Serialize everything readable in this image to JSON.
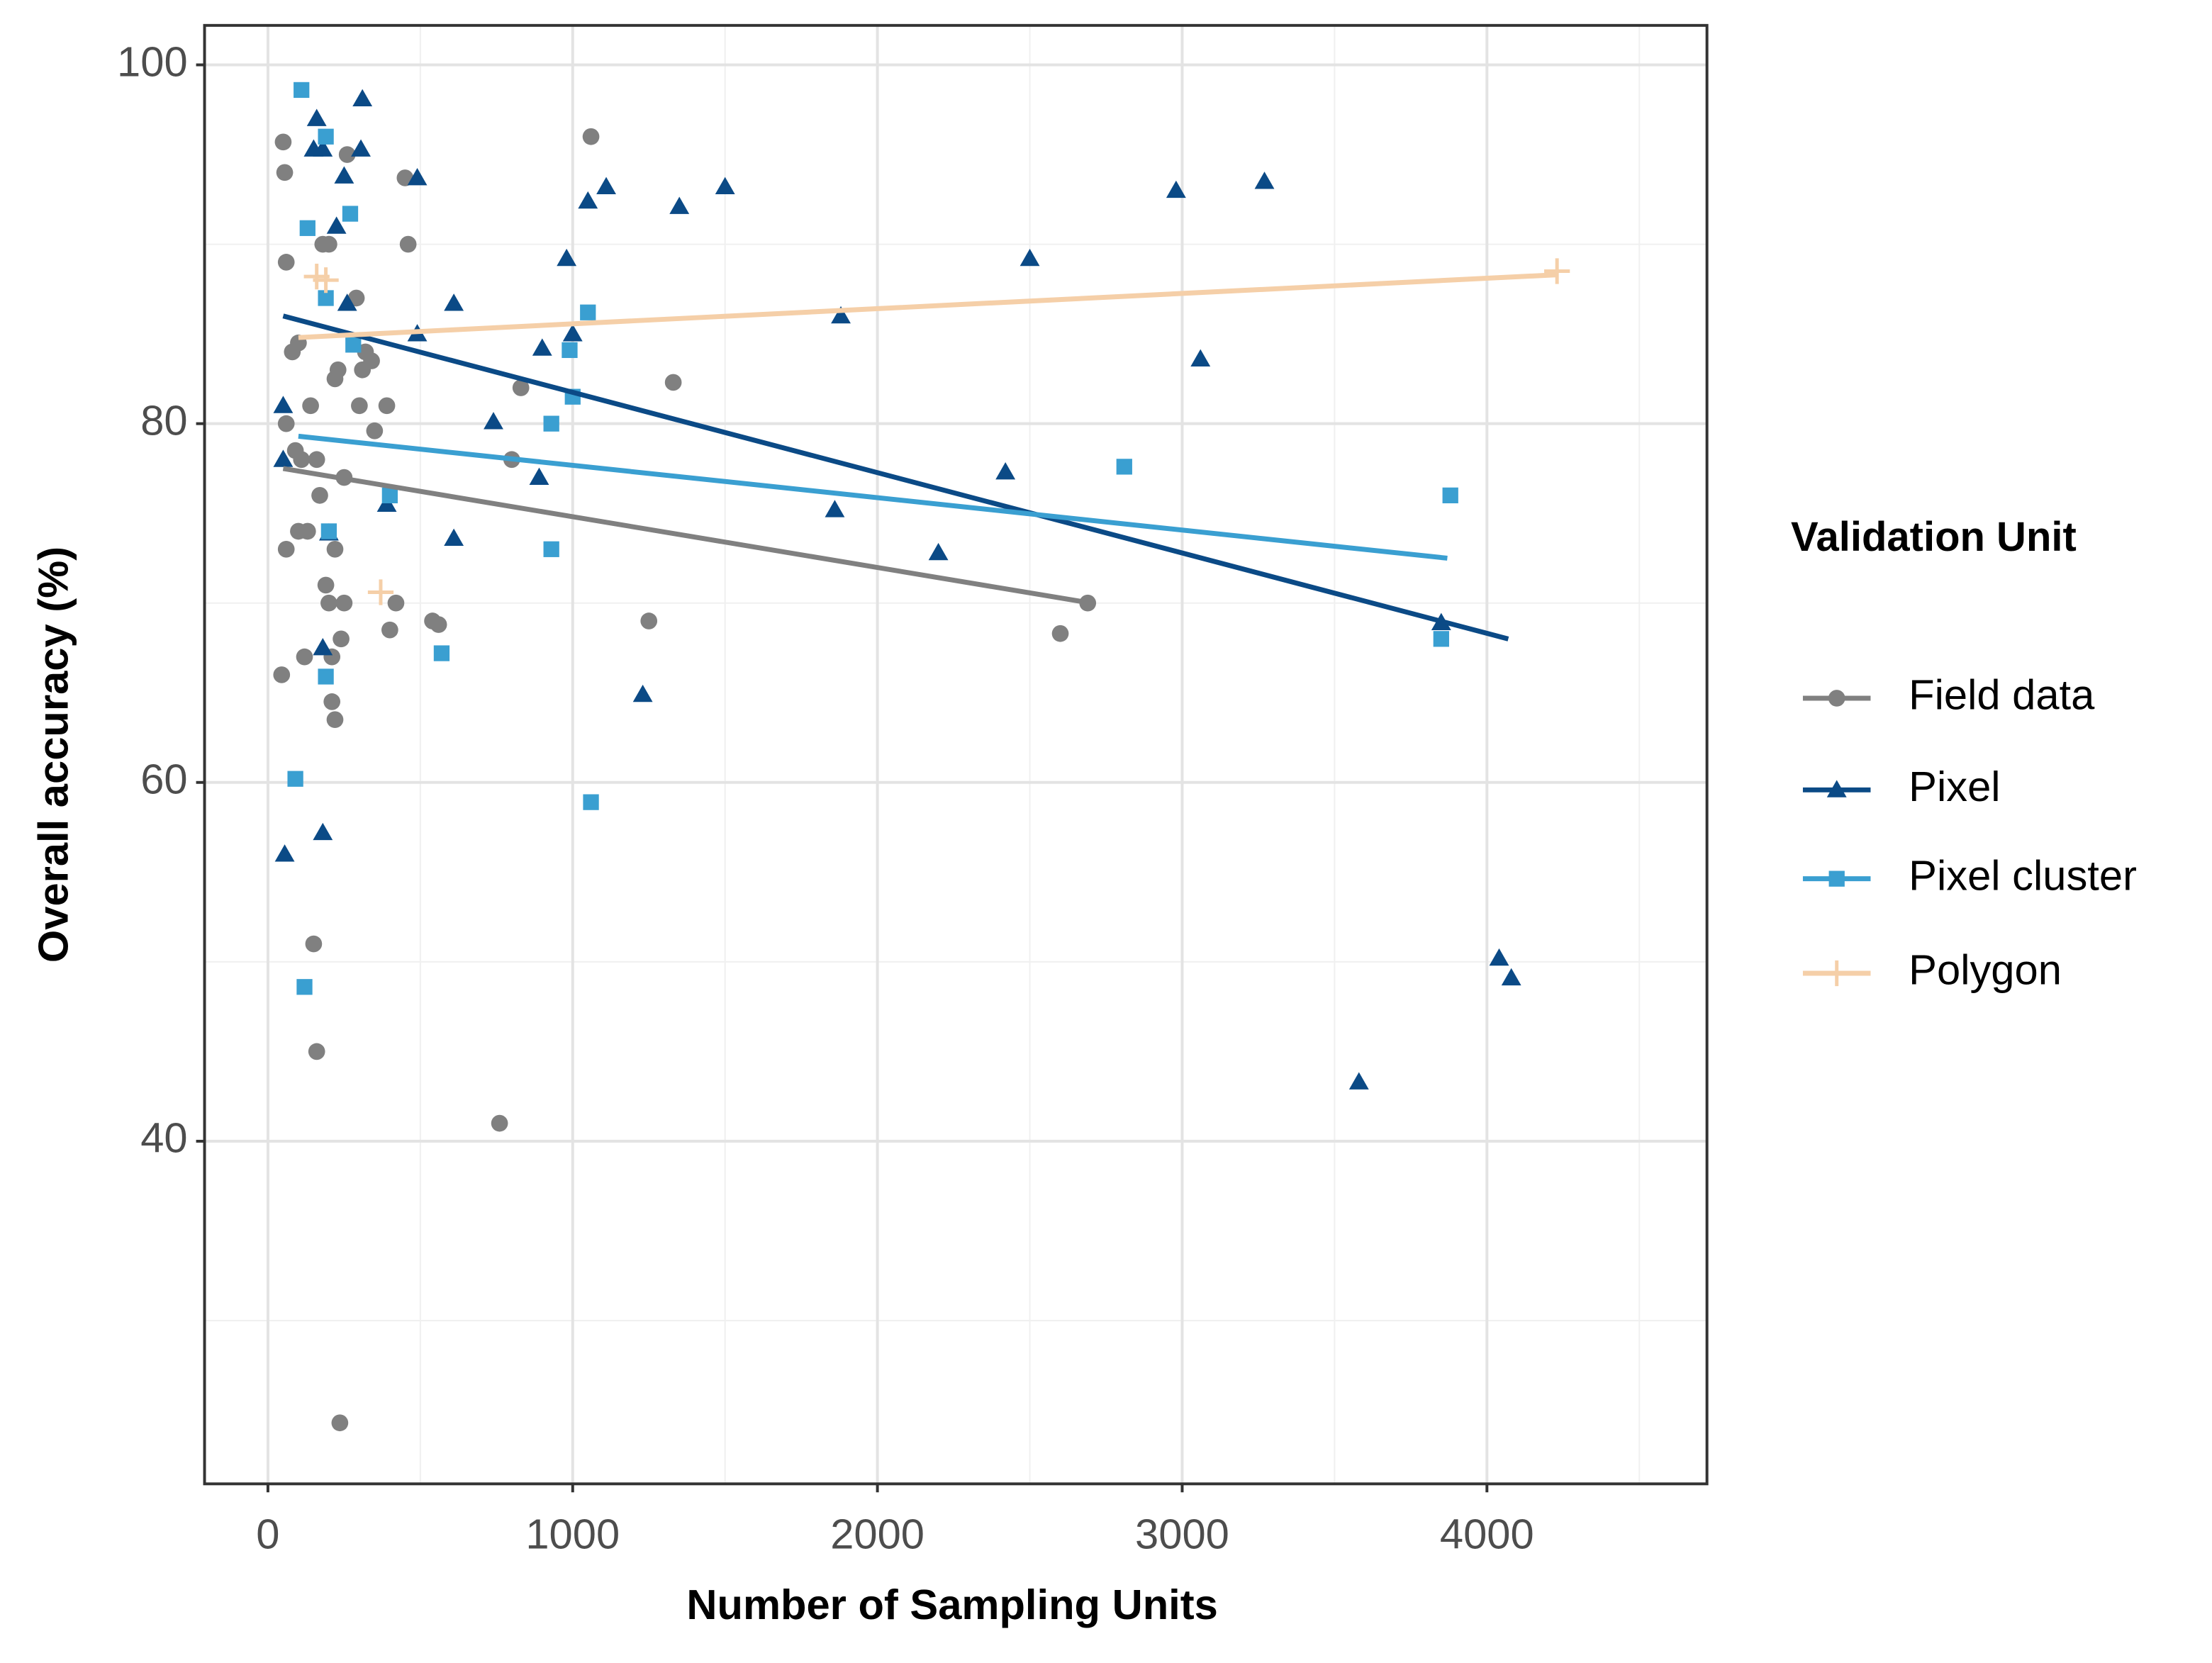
{
  "chart_data": {
    "type": "scatter",
    "xlabel": "Number of Sampling Units",
    "ylabel": "Overall accuracy (%)",
    "legend_title": "Validation Unit",
    "legend": "right",
    "grid": true,
    "xlim": [
      -208,
      4722
    ],
    "ylim": [
      20.9,
      102.2
    ],
    "xticks": [
      0,
      1000,
      2000,
      3000,
      4000
    ],
    "yticks": [
      40,
      60,
      80,
      100
    ],
    "xminor": [
      500,
      1500,
      2500,
      3500,
      4500
    ],
    "yminor": [
      30,
      50,
      70,
      90
    ],
    "series": [
      {
        "name": "Field data",
        "color": "#808080",
        "marker": "circle",
        "x": [
          50,
          55,
          60,
          60,
          60,
          45,
          80,
          100,
          90,
          110,
          100,
          130,
          120,
          150,
          160,
          140,
          160,
          170,
          180,
          200,
          190,
          200,
          210,
          210,
          220,
          230,
          220,
          220,
          240,
          250,
          250,
          260,
          290,
          300,
          310,
          320,
          340,
          350,
          390,
          400,
          420,
          450,
          460,
          540,
          560,
          760,
          800,
          830,
          1060,
          1250,
          1330,
          2600,
          2690,
          236
        ],
        "y": [
          95.7,
          94,
          89,
          80,
          73,
          66,
          84,
          84.5,
          78.5,
          78,
          74,
          74,
          67,
          51,
          45,
          81,
          78,
          76,
          90,
          90,
          71,
          70,
          67,
          64.5,
          63.5,
          83,
          82.5,
          73,
          68,
          70,
          77,
          95,
          87,
          81,
          83,
          84,
          83.5,
          79.6,
          81,
          68.5,
          70,
          93.7,
          90,
          69,
          68.8,
          41,
          78,
          82,
          96,
          69,
          82.3,
          68.3,
          70,
          24.3
        ],
        "trend": {
          "x": [
            50,
            2700
          ],
          "y": [
            77.5,
            70
          ]
        }
      },
      {
        "name": "Pixel",
        "color": "#0b4a86",
        "marker": "triangle",
        "x": [
          55,
          50,
          50,
          160,
          150,
          180,
          310,
          305,
          250,
          225,
          260,
          180,
          180,
          200,
          390,
          490,
          490,
          610,
          610,
          740,
          890,
          900,
          980,
          1000,
          1050,
          1110,
          1230,
          1350,
          1500,
          1860,
          1880,
          2200,
          2420,
          2500,
          2980,
          3060,
          3270,
          3580,
          4040,
          4080,
          3850
        ],
        "y": [
          56,
          81,
          78,
          97,
          95.3,
          95.3,
          98.1,
          95.3,
          93.8,
          91,
          86.7,
          67.5,
          57.2,
          73.9,
          75.5,
          93.7,
          85,
          86.7,
          73.6,
          80.1,
          77,
          84.2,
          89.2,
          85,
          92.4,
          93.2,
          64.9,
          92.1,
          93.2,
          75.2,
          86,
          72.8,
          77.3,
          89.2,
          93,
          83.6,
          93.5,
          43.3,
          50.2,
          49.1,
          68.9
        ],
        "trend": {
          "x": [
            50,
            4070
          ],
          "y": [
            86,
            68
          ]
        }
      },
      {
        "name": "Pixel cluster",
        "color": "#3a9fd1",
        "marker": "square",
        "x": [
          110,
          90,
          120,
          130,
          190,
          190,
          200,
          190,
          270,
          280,
          400,
          570,
          930,
          930,
          990,
          1000,
          1050,
          1060,
          2810,
          3850,
          3880
        ],
        "y": [
          98.6,
          60.2,
          48.6,
          90.9,
          96,
          87,
          74,
          65.9,
          91.7,
          84.4,
          76,
          67.2,
          80,
          73,
          84.1,
          81.5,
          86.2,
          58.9,
          77.6,
          68,
          76
        ],
        "trend": {
          "x": [
            100,
            3870
          ],
          "y": [
            79.3,
            72.5
          ]
        }
      },
      {
        "name": "Polygon",
        "color": "#f5cfa8",
        "marker": "plus",
        "x": [
          160,
          190,
          370,
          4230
        ],
        "y": [
          88.2,
          88,
          70.6,
          88.5
        ],
        "trend": {
          "x": [
            100,
            4230
          ],
          "y": [
            84.8,
            88.3
          ]
        }
      }
    ]
  }
}
